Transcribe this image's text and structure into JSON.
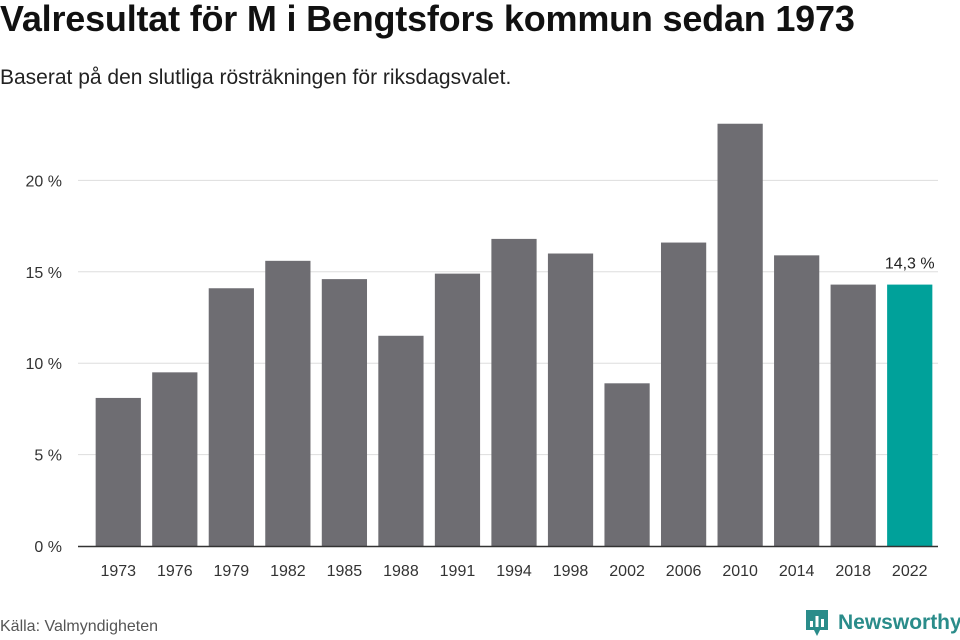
{
  "header": {
    "title": "Valresultat för M i Bengtsfors kommun sedan 1973",
    "subtitle": "Baserat på den slutliga rösträkningen för riksdagsvalet."
  },
  "footer": {
    "source": "Källa: Valmyndigheten",
    "brand": "Newsworthy",
    "brand_icon": "newsworthy-logo-icon"
  },
  "colors": {
    "bar": "#6e6d72",
    "highlight": "#00a19a",
    "grid": "#dddddd",
    "axis": "#333333",
    "text": "#333333"
  },
  "chart_data": {
    "type": "bar",
    "title": "Valresultat för M i Bengtsfors kommun sedan 1973",
    "subtitle": "Baserat på den slutliga rösträkningen för riksdagsvalet.",
    "xlabel": "",
    "ylabel": "",
    "categories": [
      "1973",
      "1976",
      "1979",
      "1982",
      "1985",
      "1988",
      "1991",
      "1994",
      "1998",
      "2002",
      "2006",
      "2010",
      "2014",
      "2018",
      "2022"
    ],
    "values": [
      8.1,
      9.5,
      14.1,
      15.6,
      14.6,
      11.5,
      14.9,
      16.8,
      16.0,
      8.9,
      16.6,
      23.1,
      15.9,
      14.3,
      14.3
    ],
    "ylim": [
      0,
      25
    ],
    "yticks": [
      0,
      5,
      10,
      15,
      20
    ],
    "ytick_labels": [
      "0 %",
      "5 %",
      "10 %",
      "15 %",
      "20 %"
    ],
    "highlight_index": 14,
    "data_labels": [
      {
        "index": 14,
        "text": "14,3 %"
      }
    ],
    "grid": true,
    "legend": "none"
  }
}
